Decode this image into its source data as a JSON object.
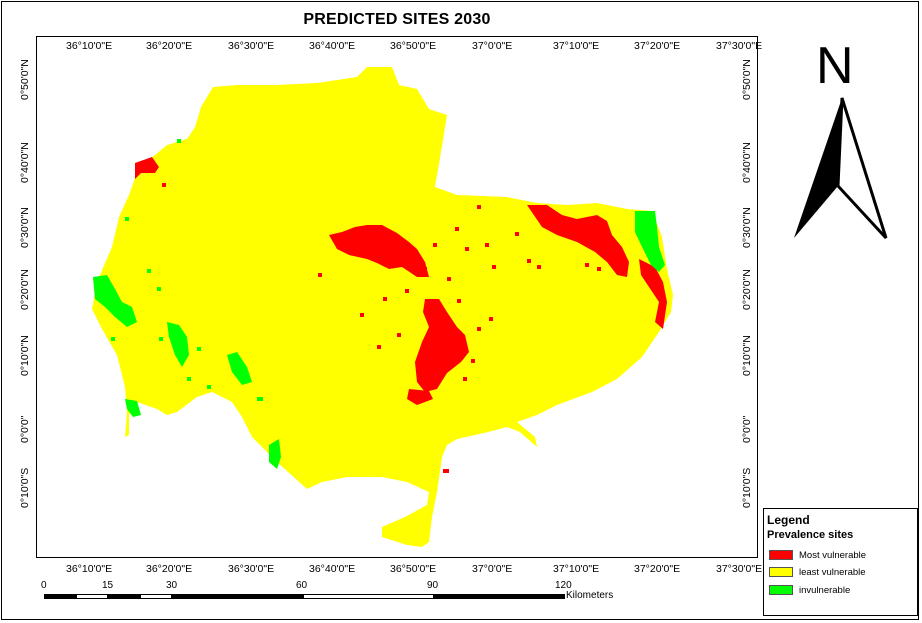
{
  "title": "PREDICTED SITES 2030",
  "colors": {
    "most": "#ff0000",
    "least": "#ffff00",
    "inv": "#00ff00"
  },
  "lon_ticks": [
    "36°10'0\"E",
    "36°20'0\"E",
    "36°30'0\"E",
    "36°40'0\"E",
    "36°50'0\"E",
    "37°0'0\"E",
    "37°10'0\"E",
    "37°20'0\"E",
    "37°30'0\"E"
  ],
  "lat_ticks": [
    "0°50'0\"N",
    "0°40'0\"N",
    "0°30'0\"N",
    "0°20'0\"N",
    "0°10'0\"N",
    "0°0'0\"",
    "0°10'0\"S"
  ],
  "north": {
    "letter": "N",
    "icon": "north-arrow-icon"
  },
  "scale": {
    "labels": [
      "0",
      "15",
      "30",
      "60",
      "90",
      "120"
    ],
    "unit": "Kilometers"
  },
  "legend": {
    "title": "Legend",
    "subtitle": "Prevalence sites",
    "items": [
      {
        "label": "Most vulnerable",
        "color": "#ff0000"
      },
      {
        "label": "least vulnerable",
        "color": "#ffff00"
      },
      {
        "label": "invulnerable",
        "color": "#00ff00"
      }
    ]
  }
}
